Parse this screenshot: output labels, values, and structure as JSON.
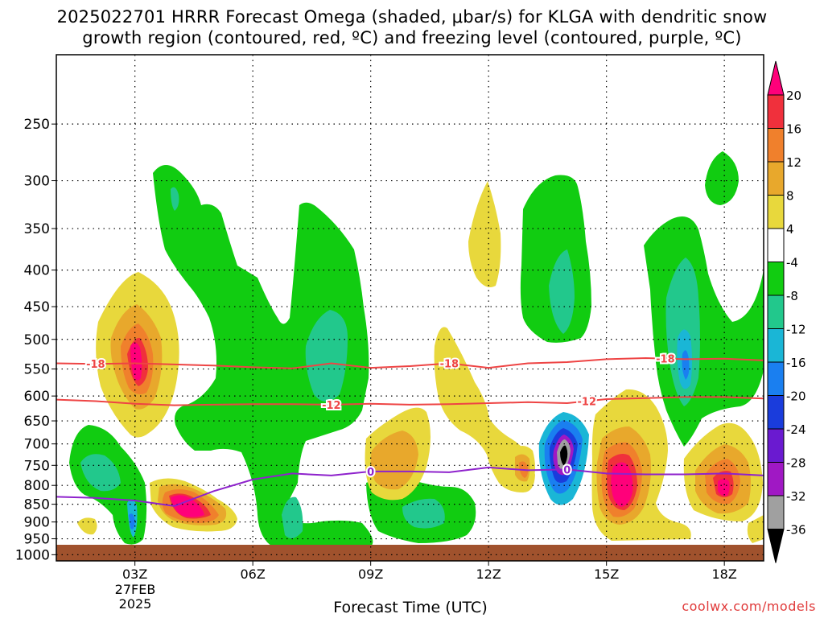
{
  "title": {
    "line1": "2025022701 HRRR Forecast Omega (shaded, μbar/s) for KLGA with dendritic snow",
    "line2": "growth region (contoured, red, ºC) and freezing level (contoured, purple, ºC)"
  },
  "x_axis_title": "Forecast Time (UTC)",
  "credit": "coolwx.com/models",
  "chart_data": {
    "type": "heatmap",
    "x_ticks": [
      "03Z",
      "06Z",
      "09Z",
      "12Z",
      "15Z",
      "18Z"
    ],
    "x_tick_hours": [
      3,
      6,
      9,
      12,
      15,
      18
    ],
    "x_range_hours": [
      1,
      19
    ],
    "date_label": [
      "27FEB",
      "2025"
    ],
    "y_ticks": [
      250,
      300,
      350,
      400,
      450,
      500,
      550,
      600,
      650,
      700,
      750,
      800,
      850,
      900,
      950,
      1000
    ],
    "y_range_mb": [
      200,
      1020
    ],
    "y_scale": "log",
    "colorbar": {
      "tick_labels": [
        "20",
        "16",
        "12",
        "8",
        "4",
        "-4",
        "-8",
        "-12",
        "-16",
        "-20",
        "-24",
        "-28",
        "-32",
        "-36"
      ],
      "colors": [
        "#ff007a",
        "#f0303c",
        "#f0802c",
        "#e8a82c",
        "#e8d83c",
        "#ffffff",
        "#11cc11",
        "#22c88c",
        "#1ab6d6",
        "#1a7ff0",
        "#1a3cdc",
        "#6a1ad0",
        "#a018c4",
        "#a0a0a0",
        "#000000"
      ]
    },
    "ground_color": "#a0522d",
    "contour_labels": [
      "-18",
      "-12",
      "0"
    ],
    "contours": [
      {
        "label": "-18",
        "color": "#ee4444",
        "hours": [
          1,
          2,
          3,
          4,
          5,
          6,
          7,
          8,
          9,
          10,
          11,
          12,
          13,
          14,
          15,
          16,
          17,
          18,
          19
        ],
        "mb": [
          540,
          541,
          540,
          542,
          544,
          547,
          549,
          540,
          548,
          545,
          540,
          548,
          540,
          538,
          533,
          531,
          533,
          532,
          535
        ]
      },
      {
        "label": "-12",
        "color": "#ee4444",
        "hours": [
          1,
          2,
          3,
          4,
          5,
          6,
          7,
          8,
          9,
          10,
          11,
          12,
          13,
          14,
          15,
          16,
          17,
          18,
          19
        ],
        "mb": [
          607,
          610,
          615,
          618,
          617,
          616,
          616,
          617,
          615,
          617,
          616,
          614,
          612,
          614,
          606,
          604,
          602,
          602,
          605
        ]
      },
      {
        "label": "0",
        "color": "#8e22cc",
        "hours": [
          1,
          2,
          3,
          4,
          5,
          6,
          7,
          8,
          9,
          10,
          11,
          12,
          13,
          14,
          15,
          16,
          17,
          18,
          19
        ],
        "mb": [
          830,
          833,
          840,
          855,
          815,
          785,
          770,
          775,
          765,
          765,
          767,
          755,
          762,
          760,
          770,
          772,
          772,
          770,
          775
        ]
      }
    ]
  }
}
